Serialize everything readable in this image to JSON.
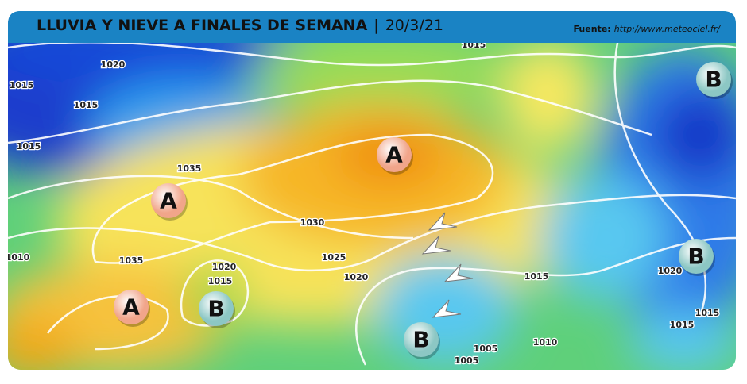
{
  "header": {
    "title": "LLUVIA Y NIEVE A FINALES DE SEMANA",
    "separator": "|",
    "date": "20/3/21",
    "source_label": "Fuente:",
    "source_url": "http://www.meteociel.fr/"
  },
  "pressure_centers": [
    "A",
    "A",
    "A",
    "B",
    "B",
    "B",
    "B"
  ],
  "isobar_labels": [
    "1020",
    "1015",
    "1015",
    "1015",
    "1035",
    "1030",
    "1025",
    "1020",
    "1035",
    "1020",
    "1015",
    "1015",
    "1015",
    "1020",
    "1015",
    "1015",
    "1005",
    "1005",
    "1010",
    "1010"
  ]
}
